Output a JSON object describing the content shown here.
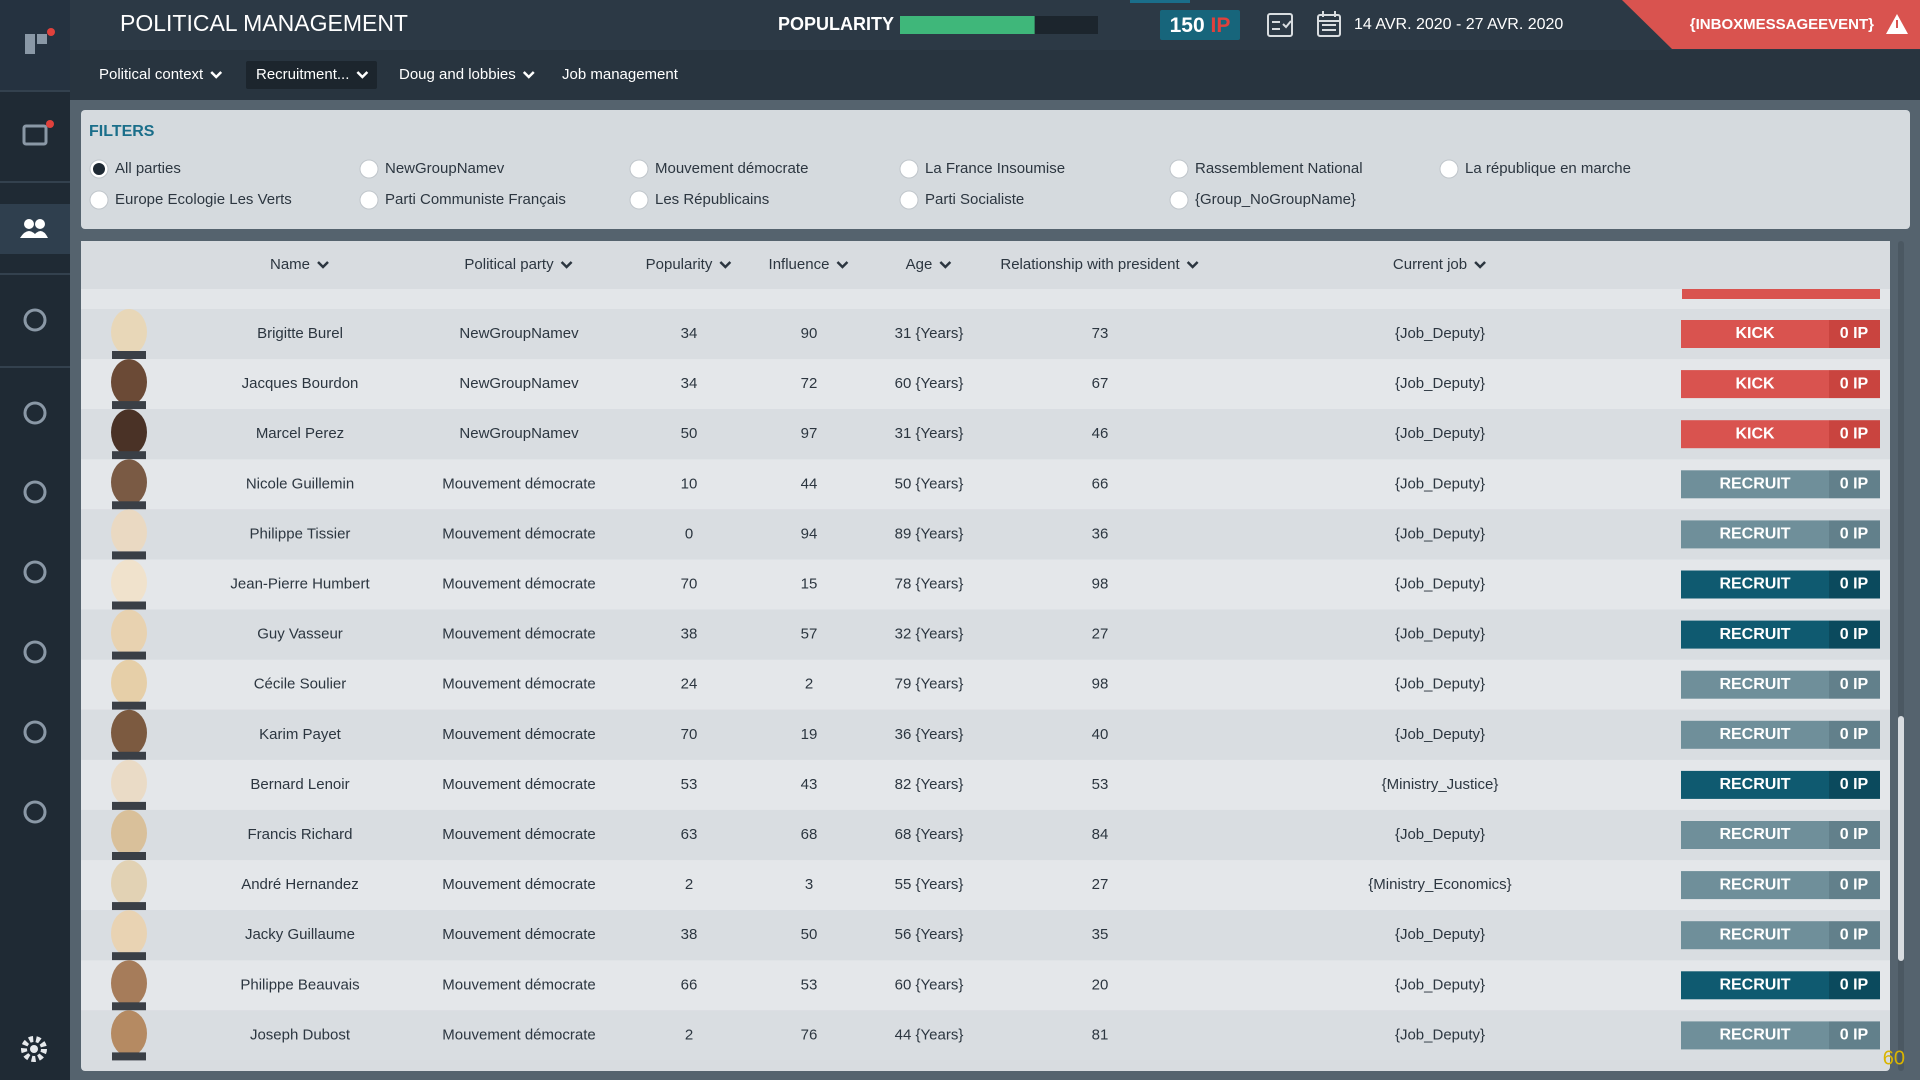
{
  "header": {
    "title": "POLITICAL MANAGEMENT",
    "popularity": {
      "label": "POPULARITY",
      "value": 68,
      "range": [
        0,
        100
      ]
    },
    "ip_amount": "150",
    "ip_unit": "IP",
    "date_range": "14 AVR. 2020 - 27 AVR. 2020",
    "inbox": "{INBOXMESSAGEEVENT}"
  },
  "tabs": [
    "Political context",
    "Recruitment...",
    "Doug and lobbies",
    "Job management"
  ],
  "filters": {
    "title": "FILTERS",
    "options": [
      "All parties",
      "NewGroupNamev",
      "Mouvement démocrate",
      "La France Insoumise",
      "Rassemblement National",
      "La république en marche",
      "Europe Ecologie Les Verts",
      "Parti Communiste Français",
      "Les Républicains",
      "Parti Socialiste",
      "{Group_NoGroupName}"
    ]
  },
  "table": {
    "columns": [
      "Name",
      "Political party",
      "Popularity",
      "Influence",
      "Age",
      "Relationship with president",
      "Current job"
    ],
    "rows": [
      {
        "name": "Brigitte Burel",
        "party": "NewGroupNamev",
        "popularity": 34,
        "influence": 90,
        "age": "31 {Years}",
        "relationship": 73,
        "job": "{Job_Deputy}",
        "action": "KICK",
        "cost": "0 IP",
        "enabled": true
      },
      {
        "name": "Jacques Bourdon",
        "party": "NewGroupNamev",
        "popularity": 34,
        "influence": 72,
        "age": "60 {Years}",
        "relationship": 67,
        "job": "{Job_Deputy}",
        "action": "KICK",
        "cost": "0 IP",
        "enabled": true
      },
      {
        "name": "Marcel Perez",
        "party": "NewGroupNamev",
        "popularity": 50,
        "influence": 97,
        "age": "31 {Years}",
        "relationship": 46,
        "job": "{Job_Deputy}",
        "action": "KICK",
        "cost": "0 IP",
        "enabled": true
      },
      {
        "name": "Nicole Guillemin",
        "party": "Mouvement démocrate",
        "popularity": 10,
        "influence": 44,
        "age": "50 {Years}",
        "relationship": 66,
        "job": "{Job_Deputy}",
        "action": "RECRUIT",
        "cost": "0 IP",
        "enabled": false
      },
      {
        "name": "Philippe Tissier",
        "party": "Mouvement démocrate",
        "popularity": 0,
        "influence": 94,
        "age": "89 {Years}",
        "relationship": 36,
        "job": "{Job_Deputy}",
        "action": "RECRUIT",
        "cost": "0 IP",
        "enabled": false
      },
      {
        "name": "Jean-Pierre Humbert",
        "party": "Mouvement démocrate",
        "popularity": 70,
        "influence": 15,
        "age": "78 {Years}",
        "relationship": 98,
        "job": "{Job_Deputy}",
        "action": "RECRUIT",
        "cost": "0 IP",
        "enabled": true
      },
      {
        "name": "Guy Vasseur",
        "party": "Mouvement démocrate",
        "popularity": 38,
        "influence": 57,
        "age": "32 {Years}",
        "relationship": 27,
        "job": "{Job_Deputy}",
        "action": "RECRUIT",
        "cost": "0 IP",
        "enabled": true
      },
      {
        "name": "Cécile Soulier",
        "party": "Mouvement démocrate",
        "popularity": 24,
        "influence": 2,
        "age": "79 {Years}",
        "relationship": 98,
        "job": "{Job_Deputy}",
        "action": "RECRUIT",
        "cost": "0 IP",
        "enabled": false
      },
      {
        "name": "Karim Payet",
        "party": "Mouvement démocrate",
        "popularity": 70,
        "influence": 19,
        "age": "36 {Years}",
        "relationship": 40,
        "job": "{Job_Deputy}",
        "action": "RECRUIT",
        "cost": "0 IP",
        "enabled": false
      },
      {
        "name": "Bernard Lenoir",
        "party": "Mouvement démocrate",
        "popularity": 53,
        "influence": 43,
        "age": "82 {Years}",
        "relationship": 53,
        "job": "{Ministry_Justice}",
        "action": "RECRUIT",
        "cost": "0 IP",
        "enabled": true
      },
      {
        "name": "Francis Richard",
        "party": "Mouvement démocrate",
        "popularity": 63,
        "influence": 68,
        "age": "68 {Years}",
        "relationship": 84,
        "job": "{Job_Deputy}",
        "action": "RECRUIT",
        "cost": "0 IP",
        "enabled": false
      },
      {
        "name": "André Hernandez",
        "party": "Mouvement démocrate",
        "popularity": 2,
        "influence": 3,
        "age": "55 {Years}",
        "relationship": 27,
        "job": "{Ministry_Economics}",
        "action": "RECRUIT",
        "cost": "0 IP",
        "enabled": false
      },
      {
        "name": "Jacky Guillaume",
        "party": "Mouvement démocrate",
        "popularity": 38,
        "influence": 50,
        "age": "56 {Years}",
        "relationship": 35,
        "job": "{Job_Deputy}",
        "action": "RECRUIT",
        "cost": "0 IP",
        "enabled": false
      },
      {
        "name": "Philippe Beauvais",
        "party": "Mouvement démocrate",
        "popularity": 66,
        "influence": 53,
        "age": "60 {Years}",
        "relationship": 20,
        "job": "{Job_Deputy}",
        "action": "RECRUIT",
        "cost": "0 IP",
        "enabled": true
      },
      {
        "name": "Joseph Dubost",
        "party": "Mouvement démocrate",
        "popularity": 2,
        "influence": 76,
        "age": "44 {Years}",
        "relationship": 81,
        "job": "{Job_Deputy}",
        "action": "RECRUIT",
        "cost": "0 IP",
        "enabled": false
      }
    ]
  },
  "fps": "60"
}
